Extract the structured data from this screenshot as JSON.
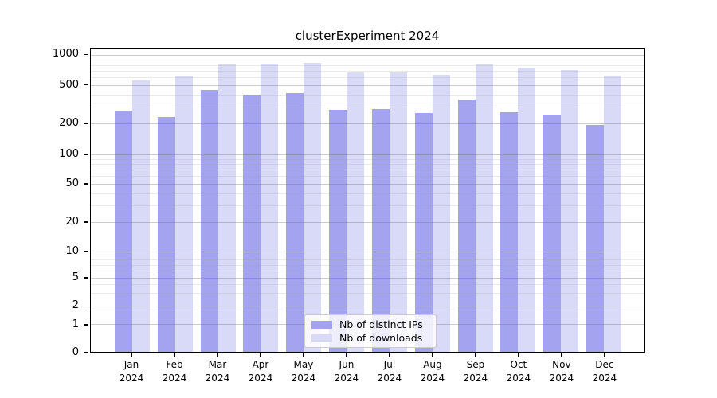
{
  "chart_data": {
    "type": "bar",
    "title": "clusterExperiment 2024",
    "categories": [
      "Jan",
      "Feb",
      "Mar",
      "Apr",
      "May",
      "Jun",
      "Jul",
      "Aug",
      "Sep",
      "Oct",
      "Nov",
      "Dec"
    ],
    "year_label": "2024",
    "series": [
      {
        "name": "Nb of distinct IPs",
        "color": "#a3a3ef",
        "values": [
          275,
          235,
          450,
          400,
          415,
          280,
          285,
          260,
          355,
          265,
          250,
          193
        ]
      },
      {
        "name": "Nb of downloads",
        "color": "#d9d9f8",
        "values": [
          565,
          620,
          805,
          830,
          845,
          670,
          670,
          635,
          810,
          755,
          715,
          625
        ]
      }
    ],
    "y_ticks": [
      1000,
      500,
      200,
      100,
      50,
      20,
      10,
      5,
      2,
      1,
      0
    ],
    "y_minor_gridlines": [
      900,
      800,
      700,
      600,
      400,
      300,
      90,
      80,
      70,
      60,
      40,
      30,
      9,
      8,
      7,
      6,
      4,
      3
    ],
    "y_scale": "log-with-zero",
    "ylim": [
      0,
      1000
    ],
    "grid": true,
    "legend_position": "bottom-center"
  },
  "colors": {
    "axis": "#000000",
    "background": "#ffffff",
    "major_grid": "#cccccc",
    "minor_grid": "#e6e6e6"
  }
}
